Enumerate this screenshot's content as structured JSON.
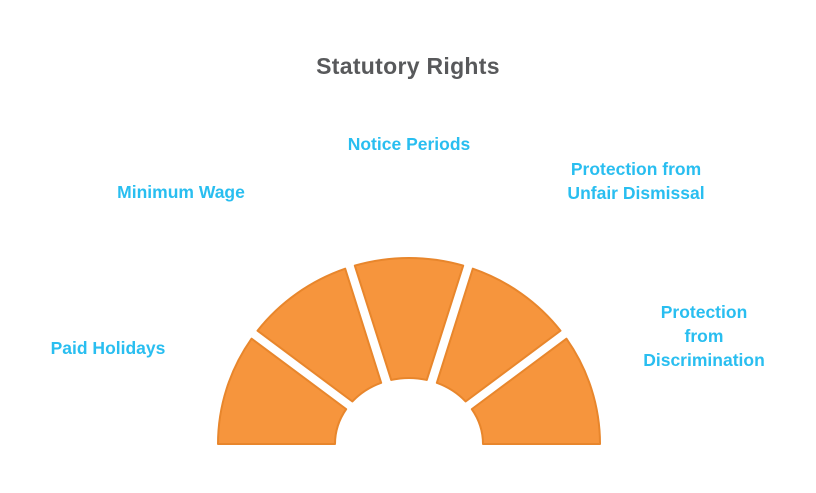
{
  "title": "Statutory Rights",
  "chart_data": {
    "type": "pie",
    "variant": "half-donut-fan",
    "title": "Statutory Rights",
    "categories": [
      "Paid Holidays",
      "Minimum Wage",
      "Notice Periods",
      "Protection from Unfair Dismissal",
      "Protection from Discrimination"
    ],
    "values": [
      1,
      1,
      1,
      1,
      1
    ],
    "total_angle_deg": 180,
    "segment_fill": "#F6953D",
    "segment_stroke": "#E8862C",
    "label_color": "#29BEF0",
    "title_color": "#58595B",
    "legend_position": "labels-around-arc"
  },
  "labels": {
    "paid_holidays": "Paid Holidays",
    "minimum_wage": "Minimum Wage",
    "notice_periods": "Notice Periods",
    "unfair_dismissal": "Protection from\nUnfair Dismissal",
    "discrimination": "Protection from\nDiscrimination"
  }
}
